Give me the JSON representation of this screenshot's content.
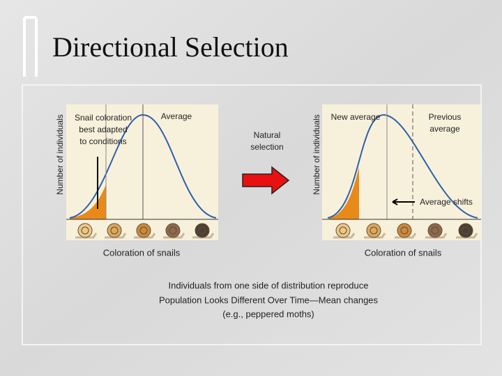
{
  "header": {
    "title": "Directional Selection"
  },
  "left_panel": {
    "y_label": "Number of individuals",
    "annotation": [
      "Snail coloration",
      "best adapted",
      "to conditions"
    ],
    "average_label": "Average",
    "x_label": "Coloration of snails"
  },
  "arrow_label": [
    "Natural",
    "selection"
  ],
  "right_panel": {
    "y_label": "Number of individuals",
    "new_average_label": "New average",
    "previous_average_label": [
      "Previous",
      "average"
    ],
    "shift_label": "Average shifts",
    "x_label": "Coloration of snails"
  },
  "caption": [
    "Individuals from one side of distribution reproduce",
    "Population Looks Different Over Time—Mean changes",
    "(e.g., peppered moths)"
  ]
}
